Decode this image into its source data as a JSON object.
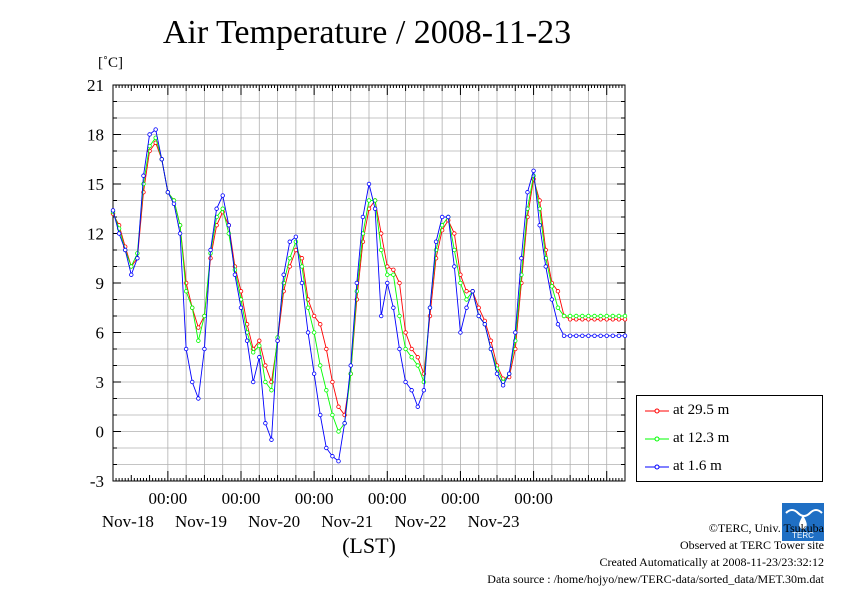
{
  "header": {
    "title": "Air Temperature / 2008-11-23",
    "unit_label": "[˚C]"
  },
  "chart_data": {
    "type": "line",
    "title": "Air Temperature / 2008-11-23",
    "xlabel": "(LST)",
    "ylabel": "[˚C]",
    "ylim": [
      -3,
      21
    ],
    "y_ticks": [
      -3,
      0,
      3,
      6,
      9,
      12,
      15,
      18,
      21
    ],
    "x_axis": "hours since Nov-18 00:00",
    "xlim": [
      -18,
      150
    ],
    "x_tick_labels": [
      {
        "x": 0,
        "time": "00:00",
        "day": "Nov-18"
      },
      {
        "x": 24,
        "time": "00:00",
        "day": "Nov-19"
      },
      {
        "x": 48,
        "time": "00:00",
        "day": "Nov-20"
      },
      {
        "x": 72,
        "time": "00:00",
        "day": "Nov-21"
      },
      {
        "x": 96,
        "time": "00:00",
        "day": "Nov-22"
      },
      {
        "x": 120,
        "time": "00:00",
        "day": "Nov-23"
      }
    ],
    "grid": true,
    "legend_position": "bottom-right",
    "series": [
      {
        "name": "at 29.5 m",
        "color": "#ff0000",
        "x": [
          -18,
          -16,
          -14,
          -12,
          -10,
          -8,
          -6,
          -4,
          -2,
          0,
          2,
          4,
          6,
          8,
          10,
          12,
          14,
          16,
          18,
          20,
          22,
          24,
          26,
          28,
          30,
          32,
          34,
          36,
          38,
          40,
          42,
          44,
          46,
          48,
          50,
          52,
          54,
          56,
          58,
          60,
          62,
          64,
          66,
          68,
          70,
          72,
          74,
          76,
          78,
          80,
          82,
          84,
          86,
          88,
          90,
          92,
          94,
          96,
          98,
          100,
          102,
          104,
          106,
          108,
          110,
          112,
          114,
          116,
          118,
          120,
          122,
          124,
          126,
          128,
          130,
          132,
          134,
          136,
          138,
          140,
          142,
          144,
          146,
          148,
          150
        ],
        "values": [
          13.2,
          12.5,
          11.2,
          10.0,
          10.5,
          14.5,
          17.0,
          17.5,
          16.5,
          14.5,
          14.0,
          12.5,
          9.0,
          7.5,
          6.3,
          7.0,
          10.5,
          12.5,
          13.3,
          12.5,
          10.0,
          8.5,
          6.5,
          5.0,
          5.5,
          4.0,
          3.0,
          5.5,
          8.5,
          10.0,
          11.0,
          10.5,
          8.0,
          7.0,
          6.5,
          5.0,
          3.0,
          1.5,
          1.0,
          3.5,
          8.0,
          11.5,
          13.5,
          14.0,
          12.0,
          10.0,
          9.8,
          9.0,
          6.0,
          5.0,
          4.5,
          3.5,
          7.0,
          10.5,
          12.2,
          12.8,
          12.0,
          9.5,
          8.5,
          8.5,
          7.5,
          6.7,
          5.5,
          4.0,
          3.2,
          3.3,
          5.0,
          9.0,
          13.0,
          15.3,
          14.0,
          11.0,
          9.0,
          8.5,
          7.0,
          6.8,
          6.8,
          6.8,
          6.8,
          6.8,
          6.8,
          6.8,
          6.8,
          6.8,
          6.8
        ]
      },
      {
        "name": "at 12.3 m",
        "color": "#00ff00",
        "x": [
          -18,
          -16,
          -14,
          -12,
          -10,
          -8,
          -6,
          -4,
          -2,
          0,
          2,
          4,
          6,
          8,
          10,
          12,
          14,
          16,
          18,
          20,
          22,
          24,
          26,
          28,
          30,
          32,
          34,
          36,
          38,
          40,
          42,
          44,
          46,
          48,
          50,
          52,
          54,
          56,
          58,
          60,
          62,
          64,
          66,
          68,
          70,
          72,
          74,
          76,
          78,
          80,
          82,
          84,
          86,
          88,
          90,
          92,
          94,
          96,
          98,
          100,
          102,
          104,
          106,
          108,
          110,
          112,
          114,
          116,
          118,
          120,
          122,
          124,
          126,
          128,
          130,
          132,
          134,
          136,
          138,
          140,
          142,
          144,
          146,
          148,
          150
        ],
        "values": [
          13.3,
          12.3,
          11.0,
          10.0,
          10.8,
          15.0,
          17.3,
          17.8,
          16.5,
          14.5,
          14.0,
          12.5,
          8.5,
          7.5,
          5.5,
          7.0,
          10.8,
          13.0,
          13.5,
          12.0,
          9.8,
          8.0,
          6.0,
          4.8,
          5.2,
          3.0,
          2.5,
          5.7,
          9.0,
          10.5,
          11.5,
          10.0,
          7.5,
          6.0,
          4.0,
          2.5,
          1.0,
          0.0,
          0.5,
          3.5,
          8.5,
          12.0,
          14.0,
          14.0,
          11.0,
          9.5,
          9.5,
          7.0,
          5.0,
          4.5,
          4.0,
          3.0,
          7.5,
          11.0,
          12.5,
          13.0,
          11.0,
          9.0,
          8.0,
          8.5,
          7.0,
          6.5,
          5.0,
          3.8,
          3.0,
          3.5,
          5.5,
          9.5,
          13.5,
          15.5,
          13.5,
          10.5,
          8.8,
          7.5,
          7.0,
          7.0,
          7.0,
          7.0,
          7.0,
          7.0,
          7.0,
          7.0,
          7.0,
          7.0,
          7.0
        ]
      },
      {
        "name": "at 1.6 m",
        "color": "#0000ff",
        "x": [
          -18,
          -16,
          -14,
          -12,
          -10,
          -8,
          -6,
          -4,
          -2,
          0,
          2,
          4,
          6,
          8,
          10,
          12,
          14,
          16,
          18,
          20,
          22,
          24,
          26,
          28,
          30,
          32,
          34,
          36,
          38,
          40,
          42,
          44,
          46,
          48,
          50,
          52,
          54,
          56,
          58,
          60,
          62,
          64,
          66,
          68,
          70,
          72,
          74,
          76,
          78,
          80,
          82,
          84,
          86,
          88,
          90,
          92,
          94,
          96,
          98,
          100,
          102,
          104,
          106,
          108,
          110,
          112,
          114,
          116,
          118,
          120,
          122,
          124,
          126,
          128,
          130,
          132,
          134,
          136,
          138,
          140,
          142,
          144,
          146,
          148,
          150
        ],
        "values": [
          13.4,
          12.0,
          11.0,
          9.5,
          10.5,
          15.5,
          18.0,
          18.3,
          16.5,
          14.5,
          13.8,
          12.0,
          5.0,
          3.0,
          2.0,
          5.0,
          11.0,
          13.5,
          14.3,
          12.5,
          9.5,
          7.5,
          5.5,
          3.0,
          4.5,
          0.5,
          -0.5,
          5.5,
          9.5,
          11.5,
          11.8,
          9.0,
          6.0,
          3.5,
          1.0,
          -1.0,
          -1.5,
          -1.8,
          0.5,
          4.0,
          9.0,
          13.0,
          15.0,
          13.5,
          7.0,
          9.0,
          7.5,
          5.0,
          3.0,
          2.5,
          1.5,
          2.5,
          7.5,
          11.5,
          13.0,
          13.0,
          10.0,
          6.0,
          7.5,
          8.5,
          7.0,
          6.5,
          5.0,
          3.5,
          2.8,
          3.5,
          6.0,
          10.5,
          14.5,
          15.8,
          12.5,
          10.0,
          8.0,
          6.5,
          5.8,
          5.8,
          5.8,
          5.8,
          5.8,
          5.8,
          5.8,
          5.8,
          5.8,
          5.8,
          5.8
        ]
      }
    ]
  },
  "footer": {
    "copyright": "©TERC, Univ. Tsukuba",
    "observed": "Observed at TERC Tower site",
    "created": "Created Automatically at 2008-11-23/23:32:12",
    "source": "Data source : /home/hojyo/new/TERC-data/sorted_data/MET.30m.dat",
    "logo_text": "TERC"
  }
}
